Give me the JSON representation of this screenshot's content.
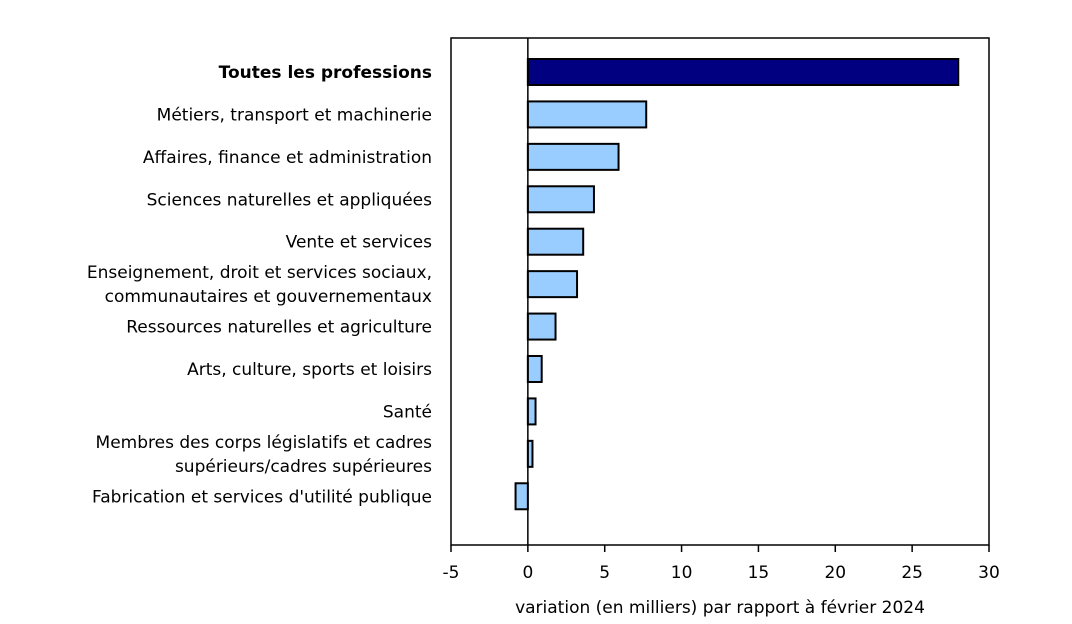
{
  "chart_data": {
    "type": "bar",
    "orientation": "horizontal",
    "categories": [
      [
        "Toutes les professions"
      ],
      [
        "Métiers, transport et machinerie"
      ],
      [
        "Affaires, finance et administration"
      ],
      [
        "Sciences naturelles et appliquées"
      ],
      [
        "Vente et services"
      ],
      [
        "Enseignement, droit et services sociaux,",
        "communautaires et gouvernementaux"
      ],
      [
        "Ressources naturelles et agriculture"
      ],
      [
        "Arts, culture, sports et loisirs"
      ],
      [
        "Santé"
      ],
      [
        "Membres des corps législatifs et cadres",
        "supérieurs/cadres supérieures"
      ],
      [
        "Fabrication et services d'utilité publique"
      ]
    ],
    "values": [
      28.0,
      7.7,
      5.9,
      4.3,
      3.6,
      3.2,
      1.8,
      0.9,
      0.5,
      0.3,
      -0.8
    ],
    "highlight_index": 0,
    "colors": {
      "highlight": "#000080",
      "default": "#99ccff",
      "stroke": "#000000"
    },
    "xlabel": "variation (en milliers) par rapport à février 2024",
    "xlim": [
      -5,
      30
    ],
    "xticks": [
      "-5",
      "0",
      "5",
      "10",
      "15",
      "20",
      "25",
      "30"
    ],
    "grid": false
  }
}
